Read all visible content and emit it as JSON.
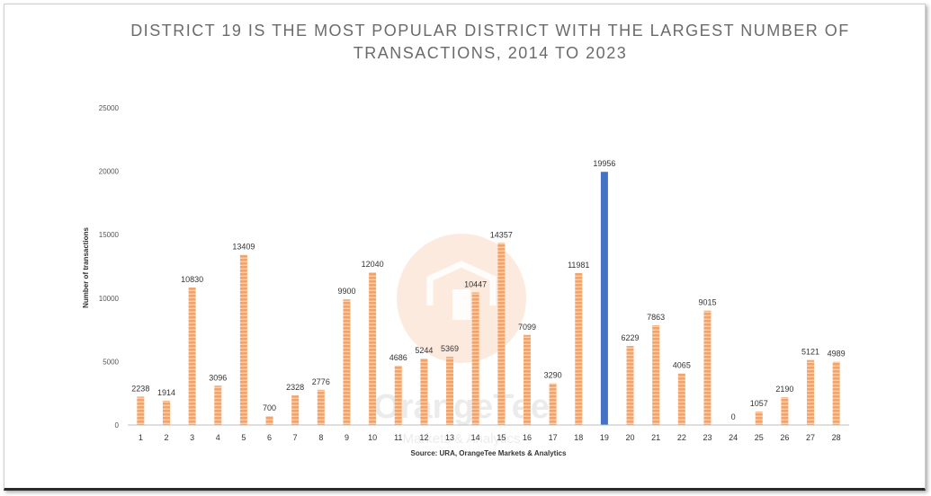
{
  "title_line1": "DISTRICT 19 IS THE MOST POPULAR DISTRICT WITH THE LARGEST NUMBER OF",
  "title_line2": "TRANSACTIONS, 2014 TO 2023",
  "source": "Source: URA, OrangeTee Markets & Analytics",
  "watermark": {
    "brand": "OrangeTee",
    "sub": "Markets & Analytics"
  },
  "colors": {
    "bar": "#f0a36b",
    "highlight": "#4472c4",
    "stripe": "#f7d2b4",
    "watermark": "#fbd9c4"
  },
  "chart_data": {
    "type": "bar",
    "title": "DISTRICT 19 IS THE MOST POPULAR DISTRICT WITH THE LARGEST NUMBER OF TRANSACTIONS, 2014 TO 2023",
    "xlabel": "",
    "ylabel": "Number of transactions",
    "ylim": [
      0,
      25000
    ],
    "yticks": [
      0,
      5000,
      10000,
      15000,
      20000,
      25000
    ],
    "grid": false,
    "highlight_category": "19",
    "categories": [
      "1",
      "2",
      "3",
      "4",
      "5",
      "6",
      "7",
      "8",
      "9",
      "10",
      "11",
      "12",
      "13",
      "14",
      "15",
      "16",
      "17",
      "18",
      "19",
      "20",
      "21",
      "22",
      "23",
      "24",
      "25",
      "26",
      "27",
      "28"
    ],
    "values": [
      2238,
      1914,
      10830,
      3096,
      13409,
      700,
      2328,
      2776,
      9900,
      12040,
      4686,
      5244,
      5369,
      10447,
      14357,
      7099,
      3290,
      11981,
      19956,
      6229,
      7863,
      4065,
      9015,
      0,
      1057,
      2190,
      5121,
      4989
    ]
  }
}
